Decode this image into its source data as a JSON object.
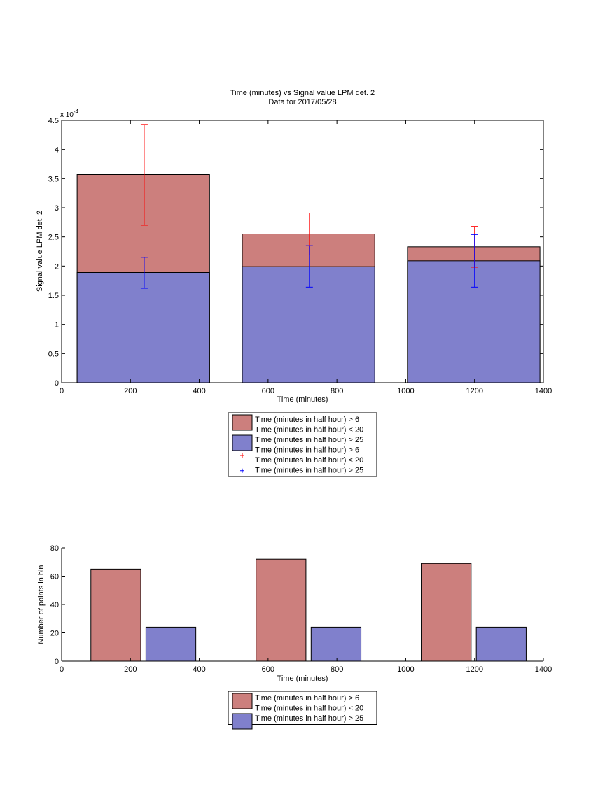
{
  "chart_data": [
    {
      "type": "bar",
      "title": "Time (minutes) vs Signal value LPM det. 2",
      "subtitle": "Data for 2017/05/28",
      "xlabel": "Time (minutes)",
      "ylabel": "Signal value LPM det. 2",
      "y_exponent_label": "x 10",
      "y_exponent_power": "-4",
      "xlim": [
        0,
        1400
      ],
      "ylim": [
        0,
        4.5
      ],
      "x_ticks": [
        "0",
        "200",
        "400",
        "600",
        "800",
        "1000",
        "1200",
        "1400"
      ],
      "y_ticks": [
        "0",
        "0.5",
        "1",
        "1.5",
        "2",
        "2.5",
        "3",
        "3.5",
        "4",
        "4.5"
      ],
      "grid": false,
      "legend_position": "below",
      "bars": [
        {
          "x0": 45,
          "x1": 430,
          "series": [
            {
              "name": "Time (minutes in half hour) > 6\nTime (minutes in half hour) < 20",
              "value": 3.57
            },
            {
              "name": "Time (minutes in half hour) > 25",
              "value": 1.89
            }
          ]
        },
        {
          "x0": 525,
          "x1": 910,
          "series": [
            {
              "name": "Time (minutes in half hour) > 6\nTime (minutes in half hour) < 20",
              "value": 2.55
            },
            {
              "name": "Time (minutes in half hour) > 25",
              "value": 1.99
            }
          ]
        },
        {
          "x0": 1005,
          "x1": 1390,
          "series": [
            {
              "name": "Time (minutes in half hour) > 6\nTime (minutes in half hour) < 20",
              "value": 2.33
            },
            {
              "name": "Time (minutes in half hour) > 25",
              "value": 2.09
            }
          ]
        }
      ],
      "errorbars": [
        {
          "series": "Time (minutes in half hour) > 6\nTime (minutes in half hour) < 20",
          "points": [
            {
              "x": 240,
              "low": 2.7,
              "high": 4.43
            },
            {
              "x": 720,
              "low": 2.19,
              "high": 2.91
            },
            {
              "x": 1200,
              "low": 1.98,
              "high": 2.68
            }
          ]
        },
        {
          "series": "Time (minutes in half hour) > 25",
          "points": [
            {
              "x": 240,
              "low": 1.62,
              "high": 2.15
            },
            {
              "x": 720,
              "low": 1.64,
              "high": 2.35
            },
            {
              "x": 1200,
              "low": 1.64,
              "high": 2.54
            }
          ]
        }
      ],
      "legend": [
        {
          "kind": "patch",
          "color": "#cc7f7d",
          "lines": [
            "Time (minutes in half hour) > 6",
            "Time (minutes in half hour) < 20"
          ]
        },
        {
          "kind": "patch",
          "color": "#8080cc",
          "lines": [
            "Time (minutes in half hour) > 25"
          ]
        },
        {
          "kind": "marker",
          "color": "#ff0000",
          "lines": [
            "Time (minutes in half hour) > 6",
            "Time (minutes in half hour) < 20"
          ]
        },
        {
          "kind": "marker",
          "color": "#0000ff",
          "lines": [
            "Time (minutes in half hour) > 25"
          ]
        }
      ]
    },
    {
      "type": "bar",
      "xlabel": "Time (minutes)",
      "ylabel": "Number of points in bin",
      "xlim": [
        0,
        1400
      ],
      "ylim": [
        0,
        80
      ],
      "x_ticks": [
        "0",
        "200",
        "400",
        "600",
        "800",
        "1000",
        "1200",
        "1400"
      ],
      "y_ticks": [
        "0",
        "20",
        "40",
        "60",
        "80"
      ],
      "grid": false,
      "legend_position": "below",
      "bars": [
        {
          "series": "Time (minutes in half hour) > 6\nTime (minutes in half hour) < 20",
          "x0": 85,
          "x1": 230,
          "value": 65
        },
        {
          "series": "Time (minutes in half hour) > 25",
          "x0": 245,
          "x1": 390,
          "value": 24
        },
        {
          "series": "Time (minutes in half hour) > 6\nTime (minutes in half hour) < 20",
          "x0": 565,
          "x1": 710,
          "value": 72
        },
        {
          "series": "Time (minutes in half hour) > 25",
          "x0": 725,
          "x1": 870,
          "value": 24
        },
        {
          "series": "Time (minutes in half hour) > 6\nTime (minutes in half hour) < 20",
          "x0": 1045,
          "x1": 1190,
          "value": 69
        },
        {
          "series": "Time (minutes in half hour) > 25",
          "x0": 1205,
          "x1": 1350,
          "value": 24
        }
      ],
      "legend": [
        {
          "kind": "patch",
          "color": "#cc7f7d",
          "lines": [
            "Time (minutes in half hour) > 6",
            "Time (minutes in half hour) < 20"
          ]
        },
        {
          "kind": "patch",
          "color": "#8080cc",
          "lines": [
            "Time (minutes in half hour) > 25"
          ]
        }
      ]
    }
  ]
}
